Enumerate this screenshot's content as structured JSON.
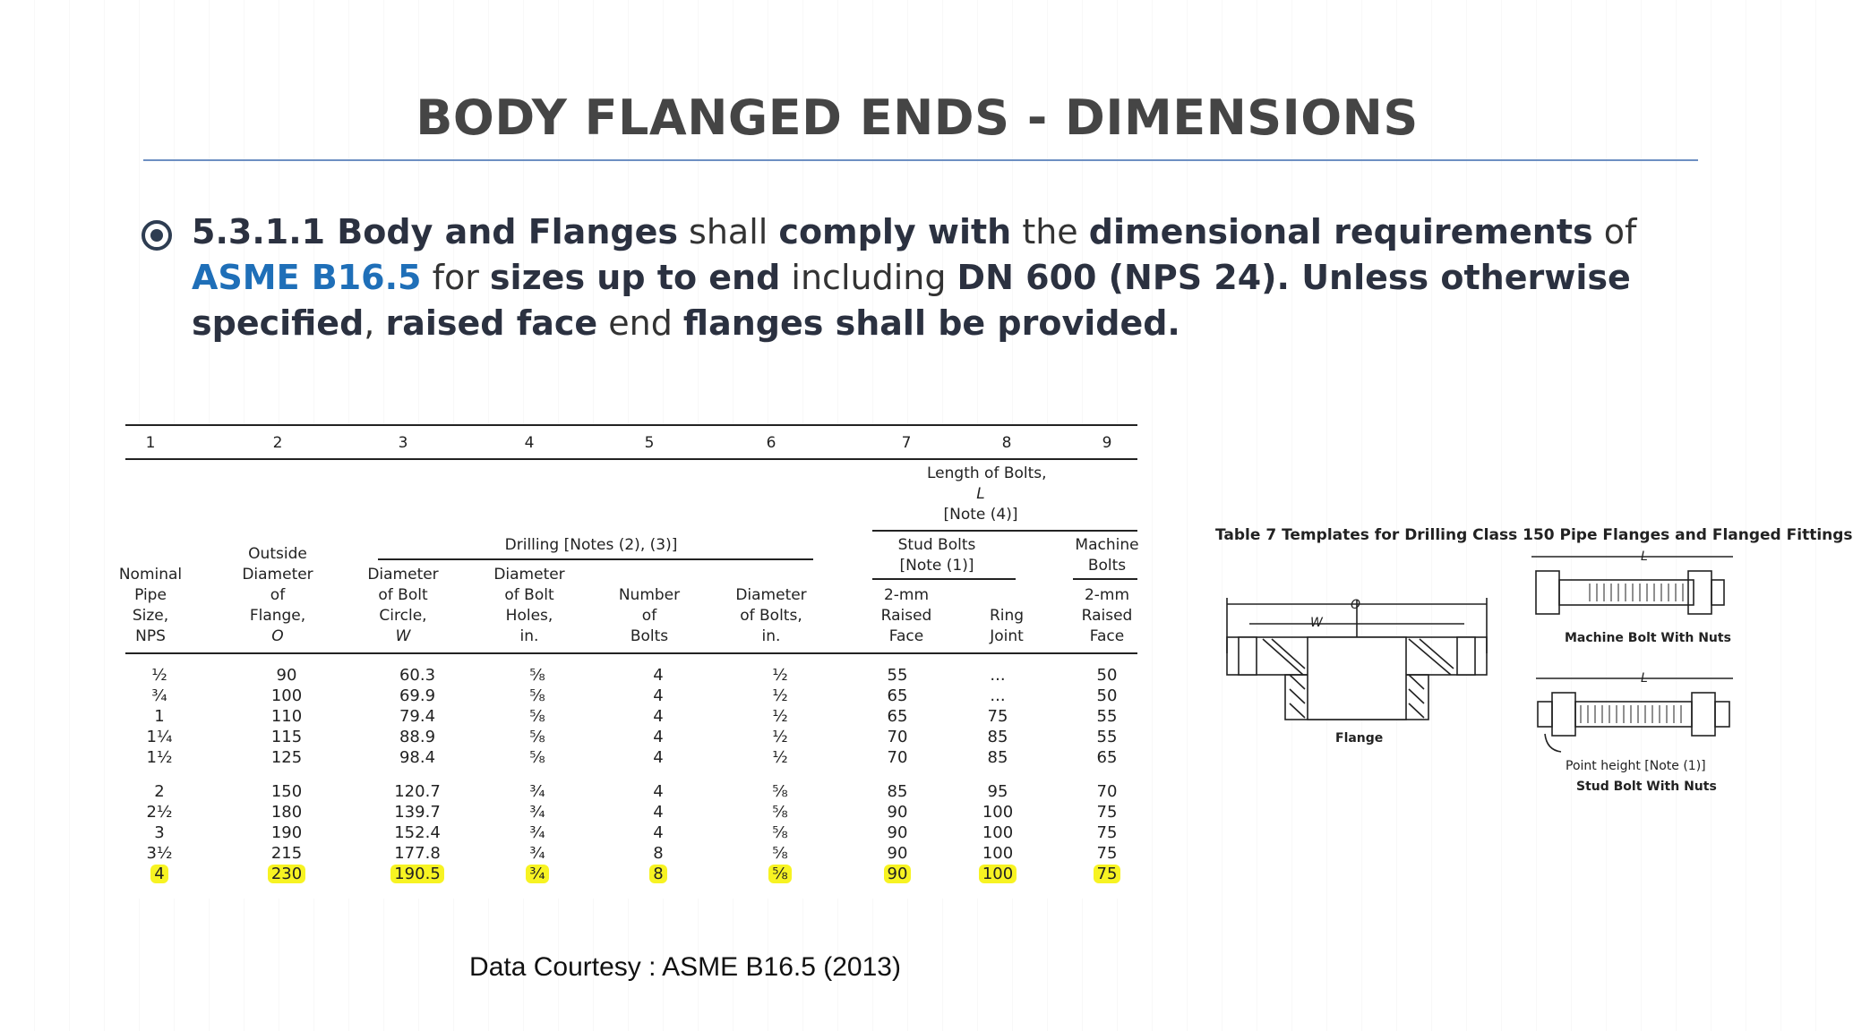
{
  "slide": {
    "title": "BODY FLANGED ENDS - DIMENSIONS",
    "paragraph": {
      "p1": "5.3.1.1 Body and Flanges",
      "p2": " shall ",
      "p3": "comply with",
      "p4": " the ",
      "p5": "dimensional requirements",
      "p6": " of ",
      "p7": "ASME B16.5",
      "p8": " for ",
      "p9": "sizes up to end",
      "p10": " including ",
      "p11": "DN 600 (NPS 24). Unless otherwise specified",
      "p12": ", ",
      "p13": "raised face",
      "p14": " end ",
      "p15": "flanges shall be provided."
    },
    "footer": "Data Courtesy : ASME B16.5 (2013)",
    "colors": {
      "accent_blue": "#1f6fb8",
      "rule": "#6d8fc2",
      "highlight": "#f7f322"
    }
  },
  "table": {
    "col_numbers": [
      "1",
      "2",
      "3",
      "4",
      "5",
      "6",
      "7",
      "8",
      "9"
    ],
    "headers": {
      "length_of_bolts": "Length of Bolts,",
      "length_L": "L",
      "note4": "[Note (4)]",
      "drilling": "Drilling [Notes (2), (3)]",
      "stud_bolts": "Stud Bolts",
      "stud_note": "[Note (1)]",
      "machine": "Machine",
      "bolts": "Bolts",
      "c1": [
        "Nominal",
        "Pipe",
        "Size,",
        "NPS"
      ],
      "c2": [
        "Outside",
        "Diameter",
        "of",
        "Flange,",
        "O"
      ],
      "c3": [
        "Diameter",
        "of Bolt",
        "Circle,",
        "W"
      ],
      "c4": [
        "Diameter",
        "of Bolt",
        "Holes,",
        "in."
      ],
      "c5": [
        "Number",
        "of",
        "Bolts"
      ],
      "c6": [
        "Diameter",
        "of Bolts,",
        "in."
      ],
      "c7": [
        "2-mm",
        "Raised",
        "Face"
      ],
      "c8": [
        "Ring",
        "Joint"
      ],
      "c9": [
        "2-mm",
        "Raised",
        "Face"
      ]
    },
    "rows": [
      [
        "½",
        "90",
        "60.3",
        "⅝",
        "4",
        "½",
        "55",
        "...",
        "50"
      ],
      [
        "¾",
        "100",
        "69.9",
        "⅝",
        "4",
        "½",
        "65",
        "...",
        "50"
      ],
      [
        "1",
        "110",
        "79.4",
        "⅝",
        "4",
        "½",
        "65",
        "75",
        "55"
      ],
      [
        "1¼",
        "115",
        "88.9",
        "⅝",
        "4",
        "½",
        "70",
        "85",
        "55"
      ],
      [
        "1½",
        "125",
        "98.4",
        "⅝",
        "4",
        "½",
        "70",
        "85",
        "65"
      ],
      [
        "2",
        "150",
        "120.7",
        "¾",
        "4",
        "⅝",
        "85",
        "95",
        "70"
      ],
      [
        "2½",
        "180",
        "139.7",
        "¾",
        "4",
        "⅝",
        "90",
        "100",
        "75"
      ],
      [
        "3",
        "190",
        "152.4",
        "¾",
        "4",
        "⅝",
        "90",
        "100",
        "75"
      ],
      [
        "3½",
        "215",
        "177.8",
        "¾",
        "8",
        "⅝",
        "90",
        "100",
        "75"
      ],
      [
        "4",
        "230",
        "190.5",
        "¾",
        "8",
        "⅝",
        "90",
        "100",
        "75"
      ]
    ],
    "highlighted_row_index": 9
  },
  "drawing": {
    "title": "Table 7   Templates for Drilling Class 150 Pipe Flanges and Flanged Fittings",
    "flange_label": "Flange",
    "machine_bolt_label": "Machine Bolt With Nuts",
    "point_height_label": "Point height [Note (1)]",
    "stud_bolt_label": "Stud Bolt With Nuts",
    "dim_O": "O",
    "dim_W": "W",
    "dim_L1": "L",
    "dim_L2": "L"
  }
}
